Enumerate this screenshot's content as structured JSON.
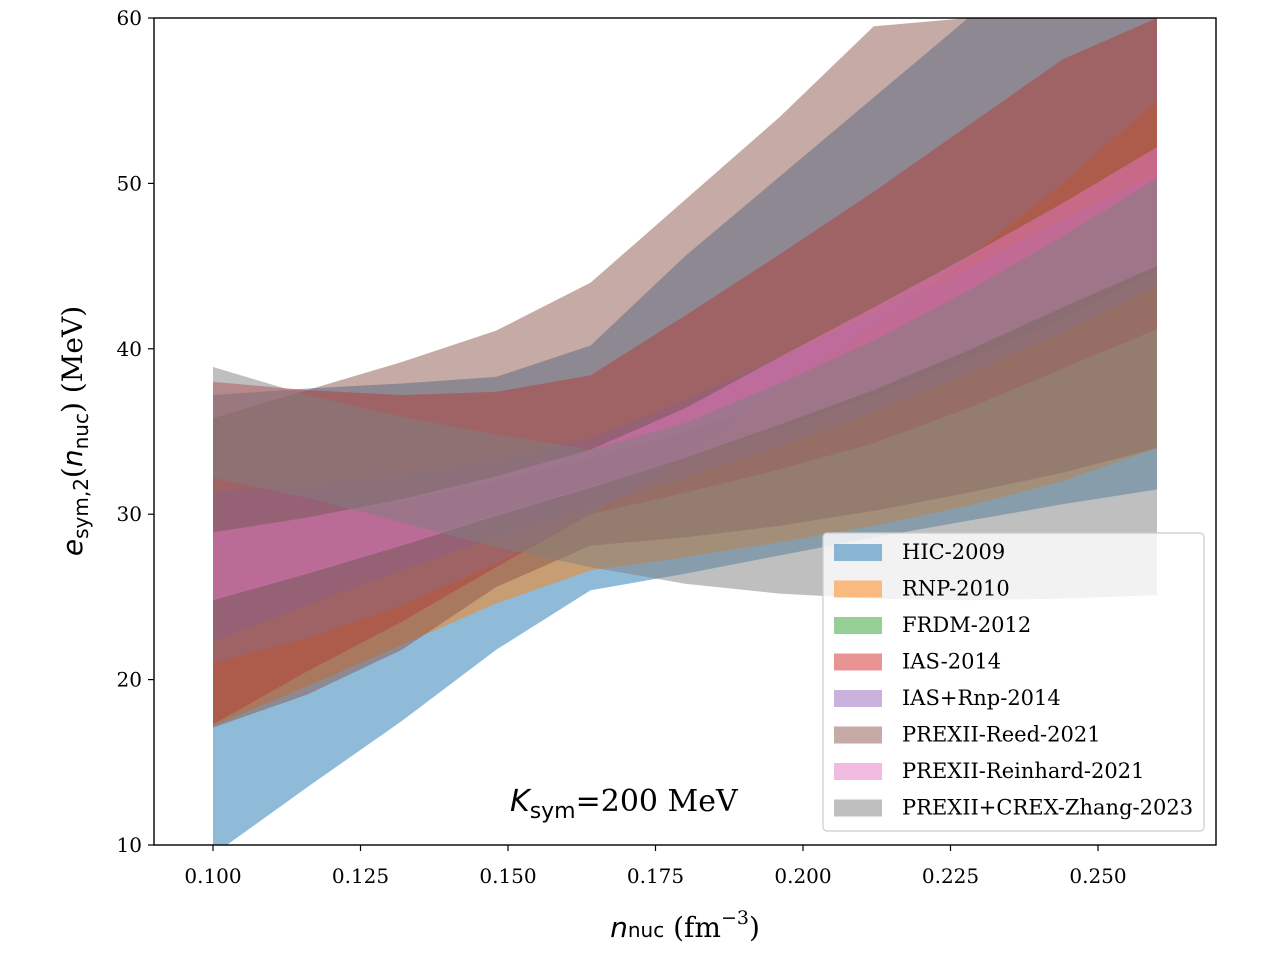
{
  "chart_data": {
    "type": "area",
    "xlabel": {
      "main": "n",
      "sub": "nuc",
      "unit_pre": " (fm",
      "unit_sup": "−3",
      "unit_post": ")"
    },
    "ylabel": {
      "main": "e",
      "sub": "sym,2",
      "mid": "(",
      "arg": "n",
      "arg_sub": "nuc",
      "post": ") (MeV)"
    },
    "xlim": [
      0.09,
      0.27
    ],
    "ylim": [
      10,
      60
    ],
    "xticks": [
      0.1,
      0.125,
      0.15,
      0.175,
      0.2,
      0.225,
      0.25
    ],
    "xtick_labels": [
      "0.100",
      "0.125",
      "0.150",
      "0.175",
      "0.200",
      "0.225",
      "0.250"
    ],
    "yticks": [
      10,
      20,
      30,
      40,
      50,
      60
    ],
    "ytick_labels": [
      "10",
      "20",
      "30",
      "40",
      "50",
      "60"
    ],
    "grid": false,
    "legend_position": "lower-right",
    "annotation": {
      "main": "K",
      "sub": "sym",
      "rest": "=200 MeV"
    },
    "series": [
      {
        "name": "HIC-2009",
        "color": "#1f77b4",
        "x": [
          0.1,
          0.116,
          0.132,
          0.148,
          0.164,
          0.18,
          0.196,
          0.212,
          0.228,
          0.244,
          0.26
        ],
        "lower": [
          9.4,
          13.5,
          17.5,
          21.8,
          25.4,
          26.4,
          27.5,
          28.6,
          29.6,
          30.6,
          31.5
        ],
        "upper": [
          37.2,
          37.6,
          37.9,
          38.3,
          40.2,
          45.6,
          50.4,
          55.2,
          60.0,
          60.0,
          60.0
        ]
      },
      {
        "name": "RNP-2010",
        "color": "#ff7f0e",
        "x": [
          0.1,
          0.116,
          0.132,
          0.148,
          0.164,
          0.18,
          0.196,
          0.212,
          0.228,
          0.244,
          0.26
        ],
        "lower": [
          17.2,
          19.6,
          22.1,
          24.6,
          26.6,
          27.4,
          28.3,
          29.3,
          30.5,
          32.0,
          34.0
        ],
        "upper": [
          21.0,
          22.5,
          24.5,
          27.0,
          30.0,
          33.5,
          37.5,
          41.5,
          45.5,
          50.0,
          55.0
        ]
      },
      {
        "name": "FRDM-2012",
        "color": "#2ca02c",
        "x": [
          0.1,
          0.116,
          0.132,
          0.148,
          0.164,
          0.18,
          0.196,
          0.212,
          0.228,
          0.244,
          0.26
        ],
        "lower": [
          24.9,
          26.5,
          28.2,
          30.0,
          31.7,
          33.4,
          35.2,
          37.2,
          39.4,
          41.8,
          44.8
        ],
        "upper": [
          28.9,
          29.8,
          30.8,
          32.0,
          33.4,
          35.0,
          36.8,
          38.8,
          41.0,
          43.5,
          46.0
        ]
      },
      {
        "name": "IAS-2014",
        "color": "#d62728",
        "x": [
          0.1,
          0.116,
          0.132,
          0.148,
          0.164,
          0.18,
          0.196,
          0.212,
          0.228,
          0.244,
          0.26
        ],
        "lower": [
          17.3,
          20.5,
          23.5,
          26.8,
          30.0,
          31.3,
          32.7,
          34.3,
          36.4,
          38.8,
          41.2
        ],
        "upper": [
          38.0,
          37.5,
          37.2,
          37.4,
          38.4,
          42.0,
          45.7,
          49.5,
          53.5,
          57.5,
          60.0
        ]
      },
      {
        "name": "IAS+Rnp-2014",
        "color": "#9467bd",
        "x": [
          0.1,
          0.116,
          0.132,
          0.148,
          0.164,
          0.18,
          0.196,
          0.212,
          0.228,
          0.244,
          0.26
        ],
        "lower": [
          22.3,
          24.5,
          26.6,
          28.6,
          30.4,
          32.2,
          34.1,
          36.2,
          38.5,
          41.0,
          43.8
        ],
        "upper": [
          31.4,
          31.8,
          32.4,
          33.3,
          34.6,
          36.9,
          39.5,
          42.1,
          44.9,
          47.8,
          50.6
        ]
      },
      {
        "name": "PREXII-Reed-2021",
        "color": "#8c564b",
        "x": [
          0.1,
          0.116,
          0.132,
          0.148,
          0.164,
          0.18,
          0.196,
          0.212,
          0.228,
          0.244,
          0.26
        ],
        "lower": [
          17.1,
          19.1,
          21.8,
          25.6,
          28.1,
          28.6,
          29.3,
          30.2,
          31.3,
          32.5,
          34.0
        ],
        "upper": [
          35.8,
          37.5,
          39.2,
          41.1,
          44.0,
          49.0,
          54.0,
          59.5,
          60.0,
          60.0,
          60.0
        ]
      },
      {
        "name": "PREXII-Reinhard-2021",
        "color": "#e377c2",
        "x": [
          0.1,
          0.116,
          0.132,
          0.148,
          0.164,
          0.18,
          0.196,
          0.212,
          0.228,
          0.244,
          0.26
        ],
        "lower": [
          24.8,
          26.4,
          28.1,
          29.9,
          31.6,
          33.4,
          35.4,
          37.5,
          39.9,
          42.5,
          45.0
        ],
        "upper": [
          28.9,
          29.8,
          30.9,
          32.3,
          33.9,
          36.4,
          39.5,
          42.5,
          45.6,
          48.8,
          52.2
        ]
      },
      {
        "name": "PREXII+CREX-Zhang-2023",
        "color": "#7f7f7f",
        "x": [
          0.1,
          0.116,
          0.132,
          0.148,
          0.164,
          0.18,
          0.196,
          0.212,
          0.228,
          0.244,
          0.26
        ],
        "lower": [
          32.2,
          31.0,
          29.5,
          28.0,
          26.8,
          25.8,
          25.2,
          24.9,
          24.8,
          24.9,
          25.1
        ],
        "upper": [
          38.9,
          37.2,
          35.9,
          34.8,
          33.9,
          35.5,
          37.9,
          40.5,
          43.5,
          46.8,
          50.3
        ]
      }
    ]
  }
}
